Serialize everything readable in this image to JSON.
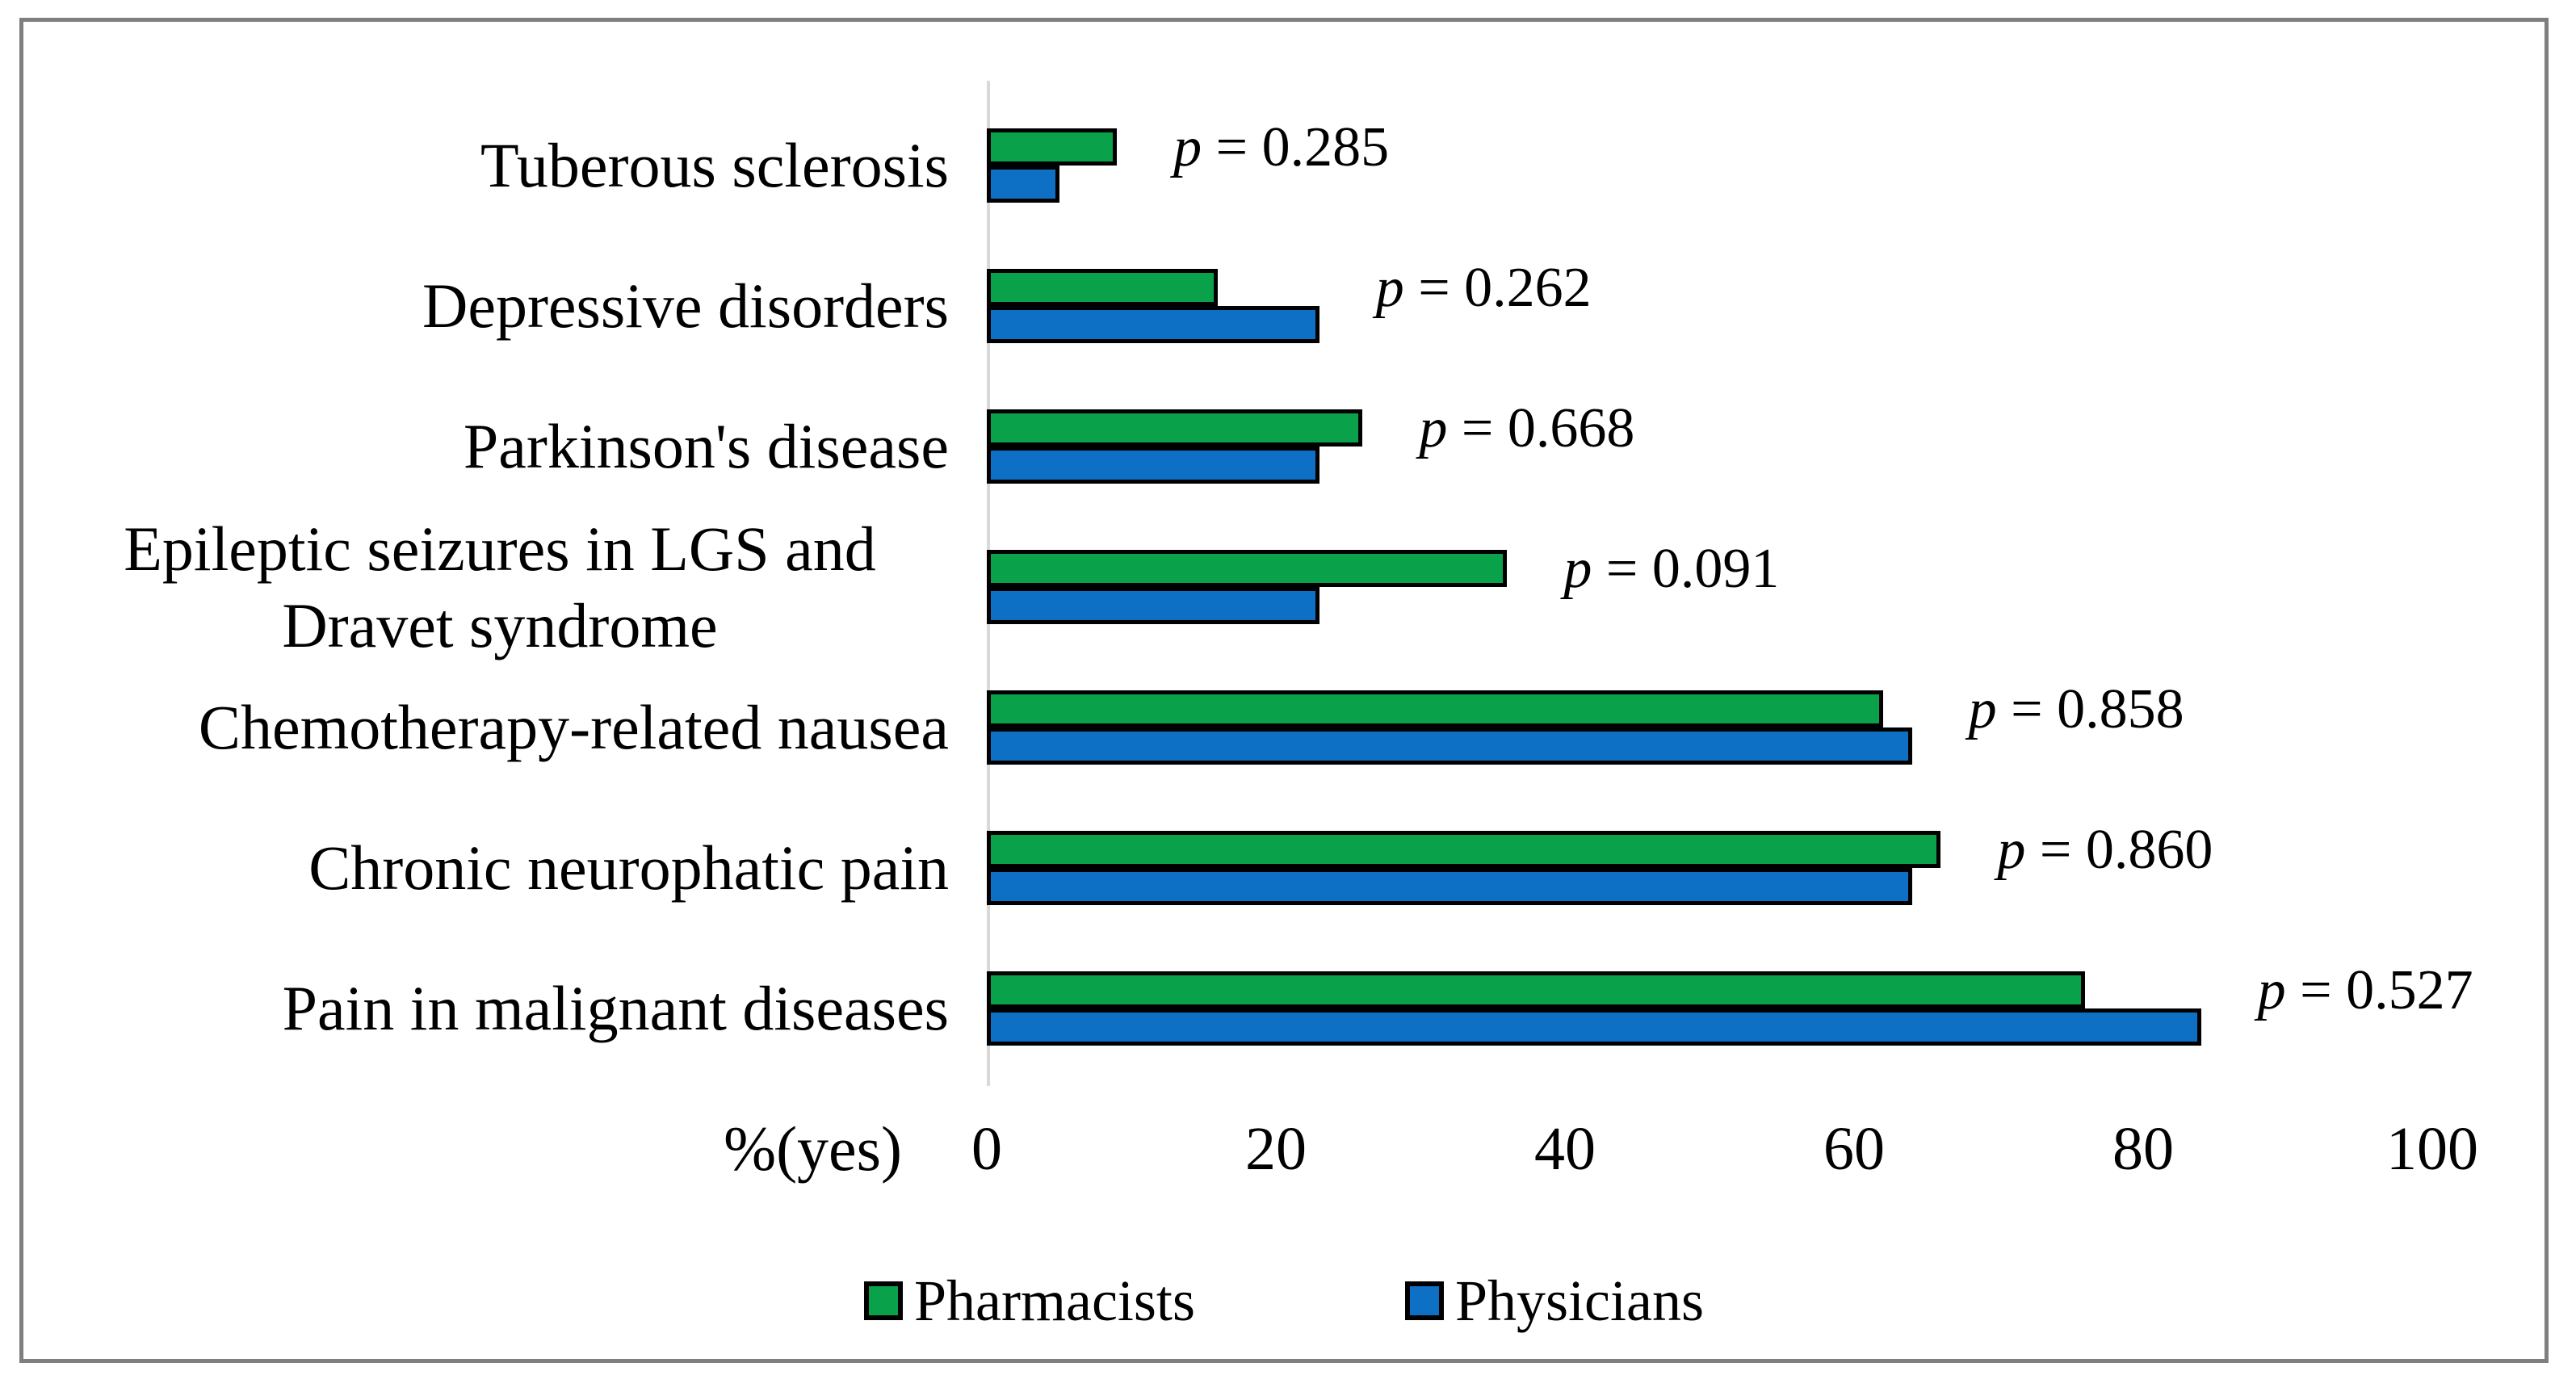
{
  "figure": {
    "background": "#ffffff",
    "frame_border_color": "#7f7f7f",
    "bar_border_color": "#000000",
    "axis_line_color": "#d9d9d9"
  },
  "chart_data": {
    "type": "bar",
    "orientation": "horizontal",
    "title": "",
    "xlabel": "%(yes)",
    "xlim": [
      0,
      100
    ],
    "x_ticks": [
      "0",
      "20",
      "40",
      "60",
      "80",
      "100"
    ],
    "grid": false,
    "legend_position": "bottom",
    "categories": [
      "Tuberous sclerosis",
      "Depressive disorders",
      "Parkinson's disease",
      "Epileptic seizures in LGS and Dravet syndrome",
      "Chemotherapy-related nausea",
      "Chronic neurophatic pain",
      "Pain in malignant diseases"
    ],
    "series": [
      {
        "name": "Pharmacists",
        "color": "#0aa14b",
        "values": [
          9,
          16,
          26,
          36,
          62,
          66,
          76
        ]
      },
      {
        "name": "Physicians",
        "color": "#0d70c4",
        "values": [
          5,
          23,
          23,
          23,
          64,
          64,
          84
        ]
      }
    ],
    "annotations": {
      "prefix": "p",
      "joiner": " = ",
      "values": [
        "0.285",
        "0.262",
        "0.668",
        "0.091",
        "0.858",
        "0.860",
        "0.527"
      ]
    }
  }
}
